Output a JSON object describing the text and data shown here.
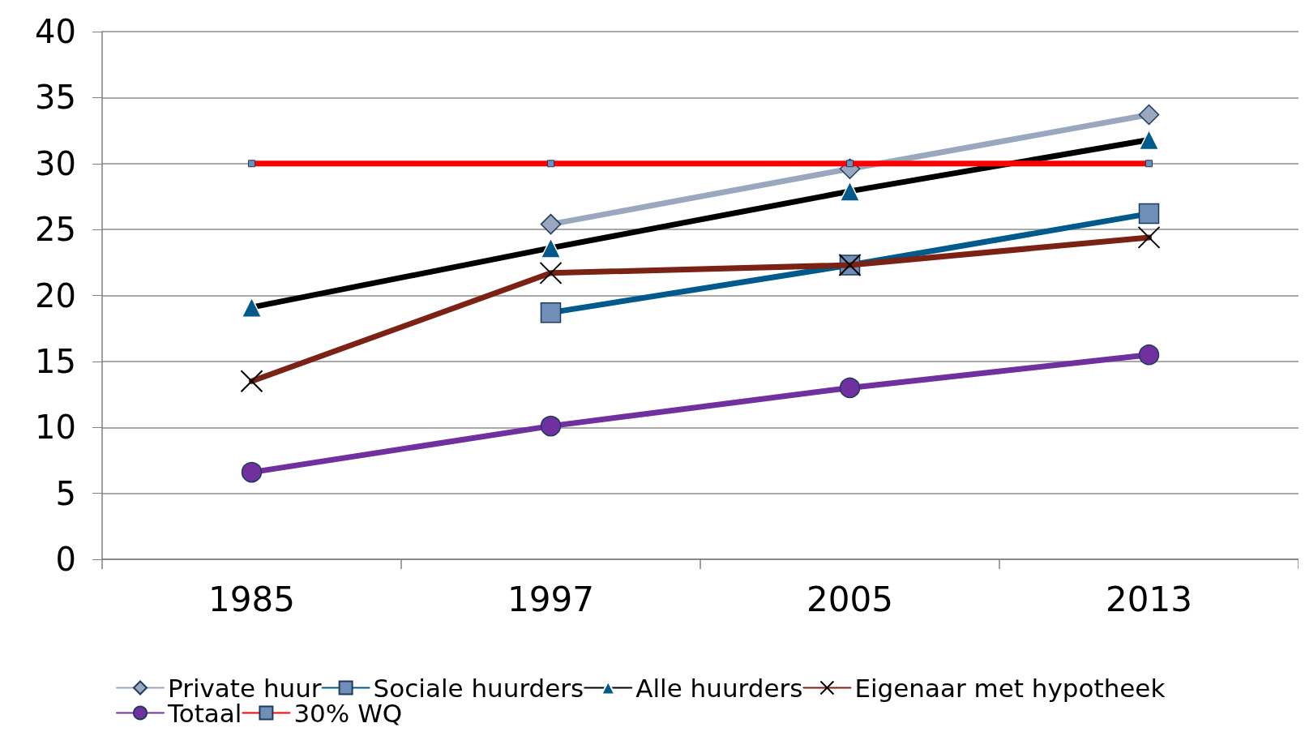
{
  "chart_data": {
    "type": "line",
    "categories": [
      "1985",
      "1997",
      "2005",
      "2013"
    ],
    "ylim": [
      0,
      40
    ],
    "yticks": [
      0,
      5,
      10,
      15,
      20,
      25,
      30,
      35,
      40
    ],
    "grid": "y",
    "legend": "bottom",
    "series": [
      {
        "name": "Private huur",
        "color": "#9aa8bf",
        "marker": "diamond",
        "values": [
          null,
          25.4,
          29.6,
          33.7
        ]
      },
      {
        "name": "Sociale huurders",
        "color": "#005a8c",
        "marker": "square",
        "values": [
          null,
          18.7,
          22.3,
          26.2
        ]
      },
      {
        "name": "Alle huurders",
        "color": "#000000",
        "marker": "triangle",
        "values": [
          19.1,
          23.6,
          27.9,
          31.8
        ]
      },
      {
        "name": "Eigenaar met hypotheek",
        "color": "#7b2214",
        "marker": "cross",
        "values": [
          13.5,
          21.7,
          22.3,
          24.4
        ]
      },
      {
        "name": "Totaal",
        "color": "#7030a0",
        "marker": "circle",
        "values": [
          6.6,
          10.1,
          13.0,
          15.5
        ]
      },
      {
        "name": "30% WQ",
        "color": "#ff0000",
        "marker": "square",
        "values": [
          30,
          30,
          30,
          30
        ]
      }
    ]
  }
}
